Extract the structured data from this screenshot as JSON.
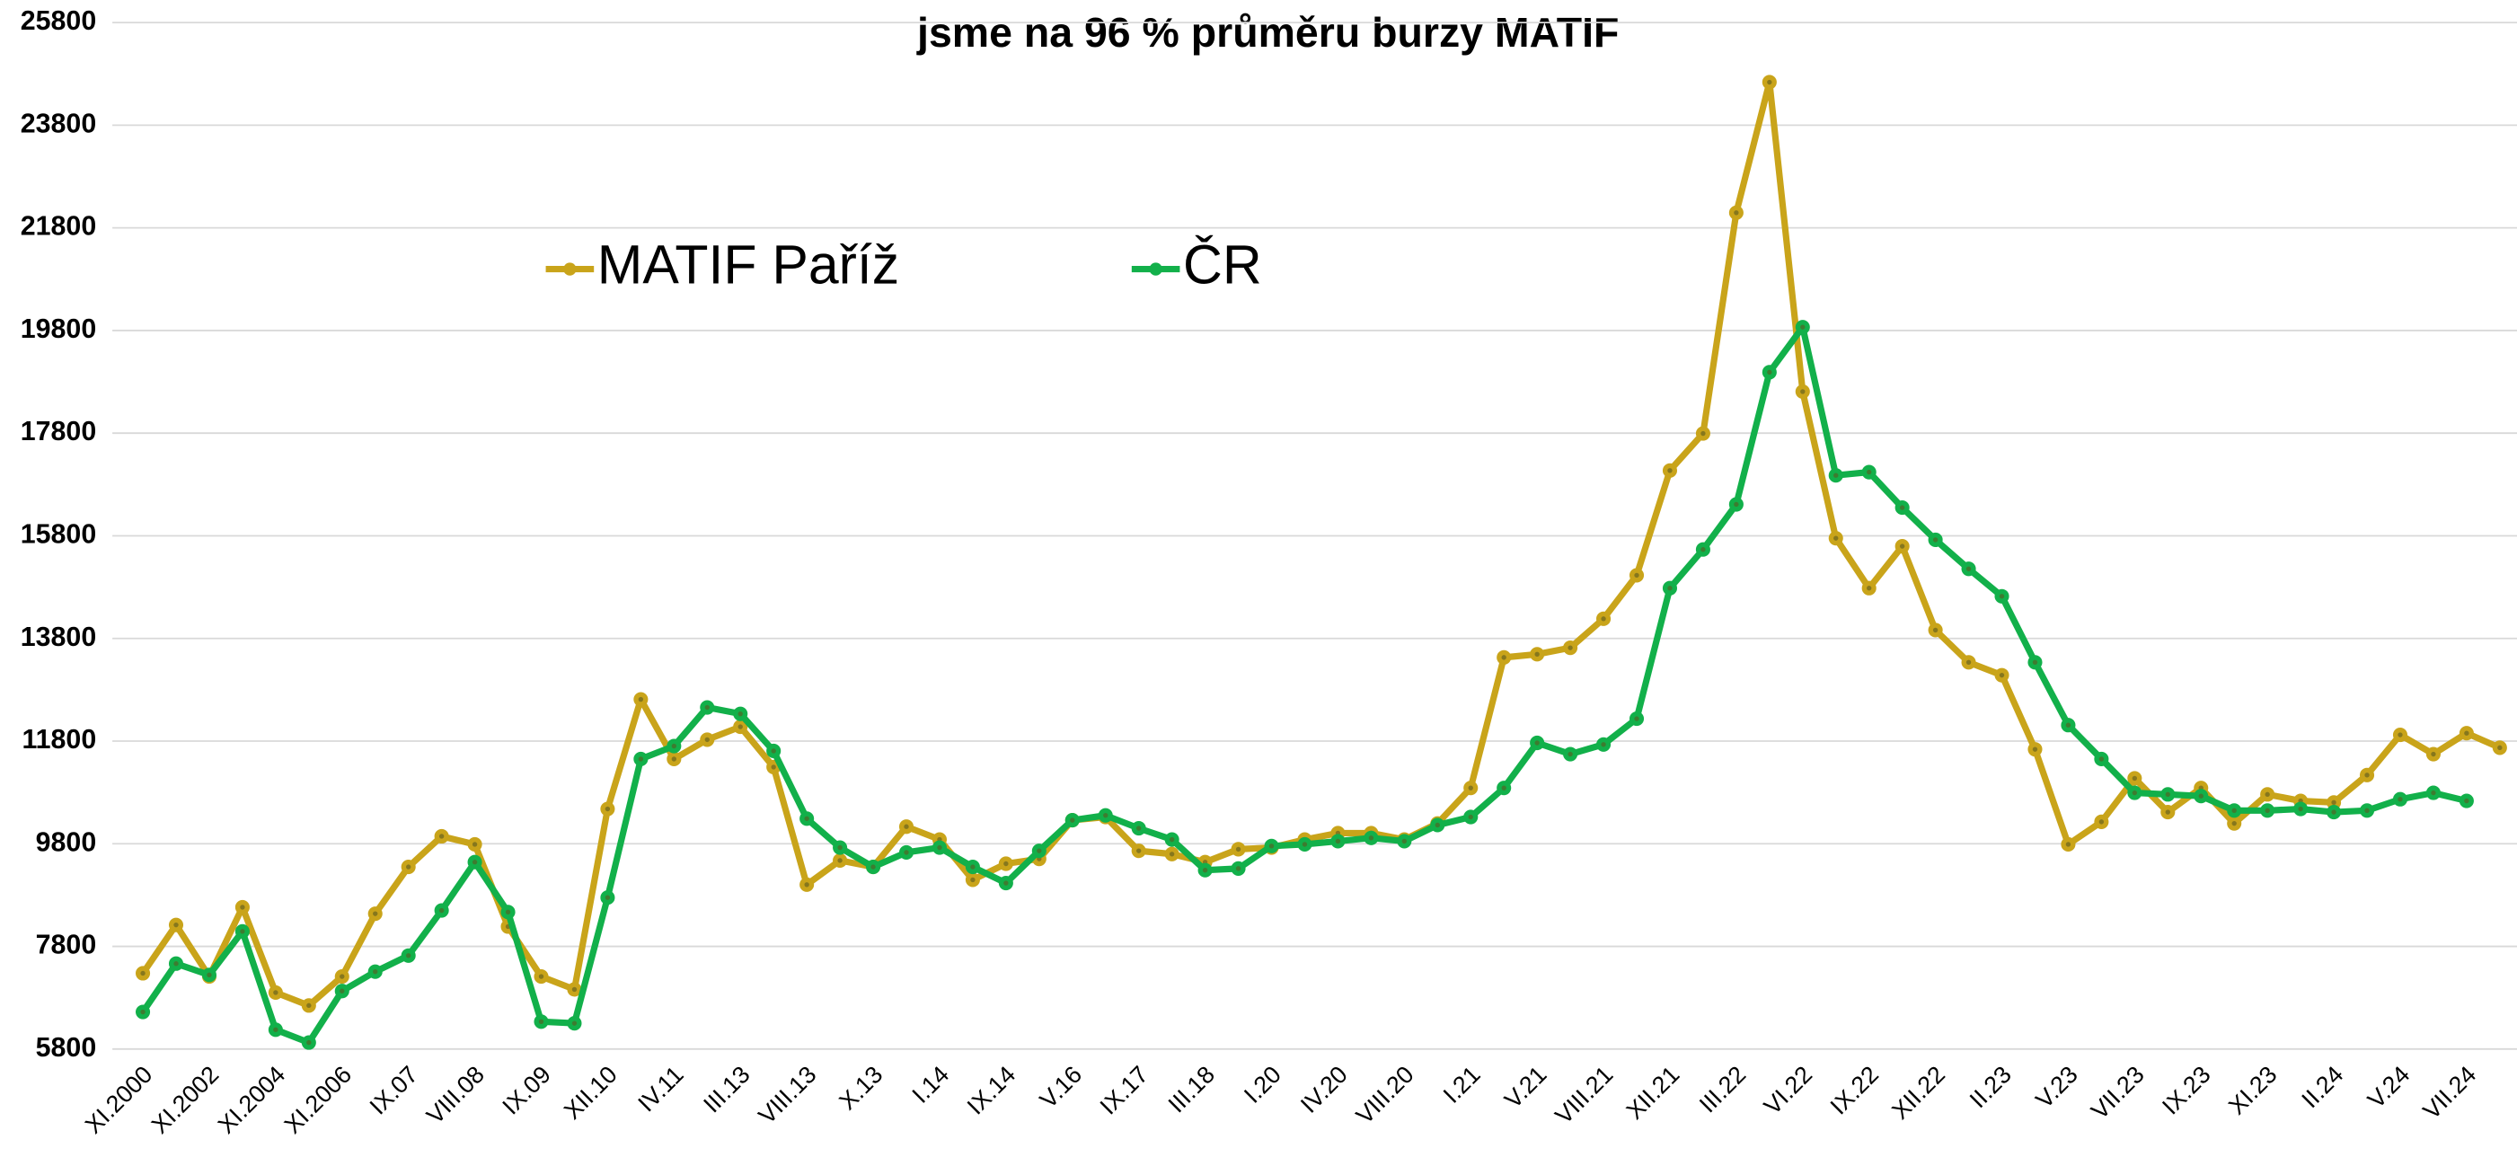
{
  "chart_data": {
    "type": "line",
    "title": "jsme na 96 % průměru burzy MATIF",
    "categories": [
      "XI.2000",
      null,
      "XI.2002",
      null,
      "XI.2004",
      null,
      "XI.2006",
      null,
      "IX.07",
      null,
      "VIII.08",
      null,
      "IX.09",
      null,
      "XII.10",
      null,
      "IV.11",
      null,
      "III.13",
      null,
      "VIII.13",
      null,
      "X.13",
      null,
      "I.14",
      null,
      "IX.14",
      null,
      "V.16",
      null,
      "IX.17",
      null,
      "III.18",
      null,
      "I.20",
      null,
      "IV.20",
      null,
      "VIII.20",
      null,
      "I.21",
      null,
      "V.21",
      null,
      "VIII.21",
      null,
      "XII.21",
      null,
      "III.22",
      null,
      "VI.22",
      null,
      "IX.22",
      null,
      "XII.22",
      null,
      "II.23",
      null,
      "V.23",
      null,
      "VII.23",
      null,
      "IX.23",
      null,
      "XI.23",
      null,
      "II.24",
      null,
      "V.24",
      null,
      "VII.24",
      null
    ],
    "series": [
      {
        "name": "MATIF Paříž",
        "color": "#c9a41a",
        "values": [
          7276,
          8218,
          7213,
          8563,
          6900,
          6648,
          7213,
          8437,
          9348,
          9945,
          9788,
          8186,
          7213,
          6962,
          10478,
          12613,
          11451,
          11828,
          12079,
          11294,
          9003,
          9474,
          9348,
          10133,
          9882,
          9097,
          9411,
          9505,
          10259,
          10321,
          9662,
          9599,
          9442,
          9693,
          9725,
          9882,
          10007,
          10007,
          9882,
          10196,
          10887,
          13430,
          13492,
          13618,
          14183,
          15031,
          17072,
          17794,
          22095,
          24638,
          18610,
          15753,
          14780,
          15596,
          13963,
          13335,
          13084,
          11640,
          9788,
          10227,
          11075,
          10416,
          10887,
          10196,
          10761,
          10635,
          10604,
          11138,
          11922,
          11546,
          11954,
          11671
        ]
      },
      {
        "name": "ČR",
        "color": "#12b04a",
        "values": [
          6522,
          7464,
          7244,
          8092,
          6177,
          5926,
          6930,
          7307,
          7621,
          8500,
          9442,
          8469,
          6334,
          6302,
          8751,
          11451,
          11703,
          12456,
          12331,
          11608,
          10290,
          9725,
          9348,
          9631,
          9725,
          9348,
          9034,
          9662,
          10259,
          10353,
          10101,
          9882,
          9285,
          9317,
          9756,
          9788,
          9850,
          9913,
          9850,
          10164,
          10321,
          10887,
          11765,
          11546,
          11734,
          12236,
          14780,
          15533,
          16412,
          18987,
          19866,
          16977,
          17040,
          16349,
          15721,
          15156,
          14622,
          13335,
          12111,
          11451,
          10792,
          10761,
          10729,
          10447,
          10447,
          10478,
          10416,
          10447,
          10667,
          10792,
          10635,
          null
        ]
      }
    ],
    "ylim": [
      5800,
      25800
    ],
    "yticks": [
      5800,
      7800,
      9800,
      11800,
      13800,
      15800,
      17800,
      19800,
      21800,
      23800,
      25800
    ],
    "grid": true,
    "legend": "top"
  }
}
